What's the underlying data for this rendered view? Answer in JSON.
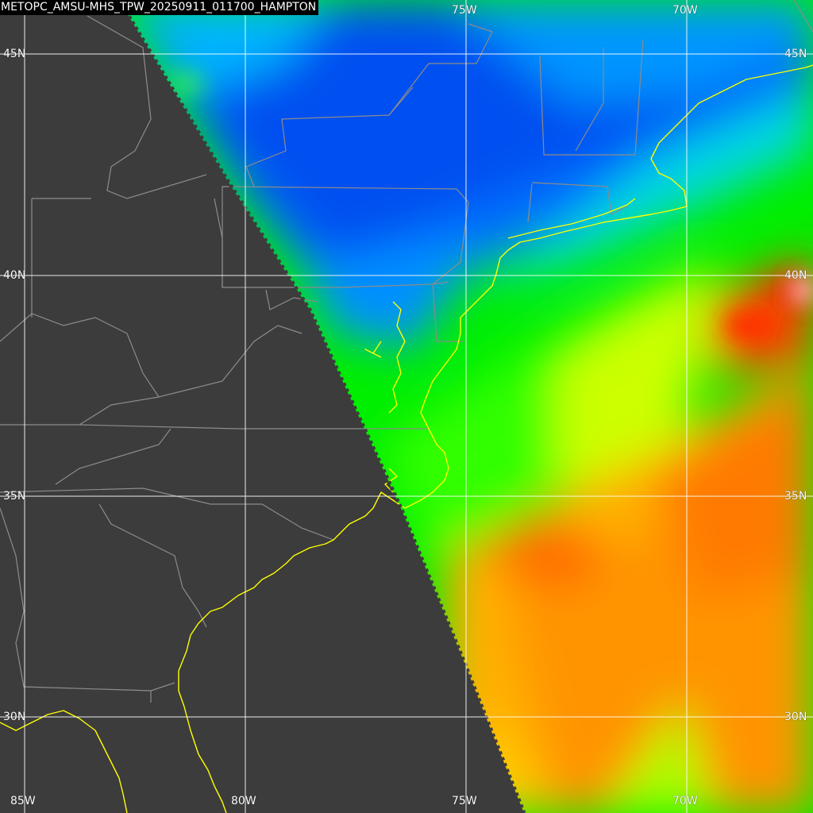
{
  "title": "METOPC_AMSU-MHS_TPW_20250911_011700_HAMPTON",
  "grid": {
    "lat_labels": [
      "45N",
      "40N",
      "35N",
      "30N"
    ],
    "lon_labels": [
      "85W",
      "80W",
      "75W",
      "70W"
    ]
  },
  "colors": {
    "background": "#3c3c3c",
    "grid": "#ffffff",
    "coastline": "#ffff00",
    "state_borders": "#8c8c8c",
    "tpw_ramp": [
      "#1a5fff",
      "#0096ff",
      "#00e6e6",
      "#00ff00",
      "#ffff00",
      "#ffa000",
      "#ff5000",
      "#ff0000",
      "#ffffff"
    ]
  },
  "legend": "none"
}
